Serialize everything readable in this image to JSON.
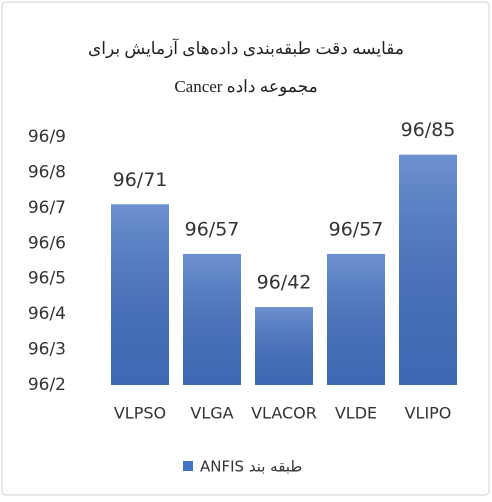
{
  "chart_data": {
    "type": "bar",
    "title": [
      "مقایسه دقت طبقه‌بندی داده‌های آزمایش  برای",
      "مجموعه داده Cancer"
    ],
    "categories": [
      "VLPSO",
      "VLGA",
      "VLACOR",
      "VLDE",
      "VLIPO"
    ],
    "series": [
      {
        "name": "طبقه بند ANFIS",
        "color": "#4472c4",
        "values": [
          96.71,
          96.57,
          96.42,
          96.57,
          96.85
        ],
        "value_labels": [
          "96/71",
          "96/57",
          "96/42",
          "96/57",
          "96/85"
        ]
      }
    ],
    "ylim": [
      96.2,
      96.9
    ],
    "yticks": [
      {
        "value": 96.2,
        "label": "96/2"
      },
      {
        "value": 96.3,
        "label": "96/3"
      },
      {
        "value": 96.4,
        "label": "96/4"
      },
      {
        "value": 96.5,
        "label": "96/5"
      },
      {
        "value": 96.6,
        "label": "96/6"
      },
      {
        "value": 96.7,
        "label": "96/7"
      },
      {
        "value": 96.8,
        "label": "96/8"
      },
      {
        "value": 96.9,
        "label": "96/9"
      }
    ],
    "grid": false,
    "legend": "bottom"
  }
}
